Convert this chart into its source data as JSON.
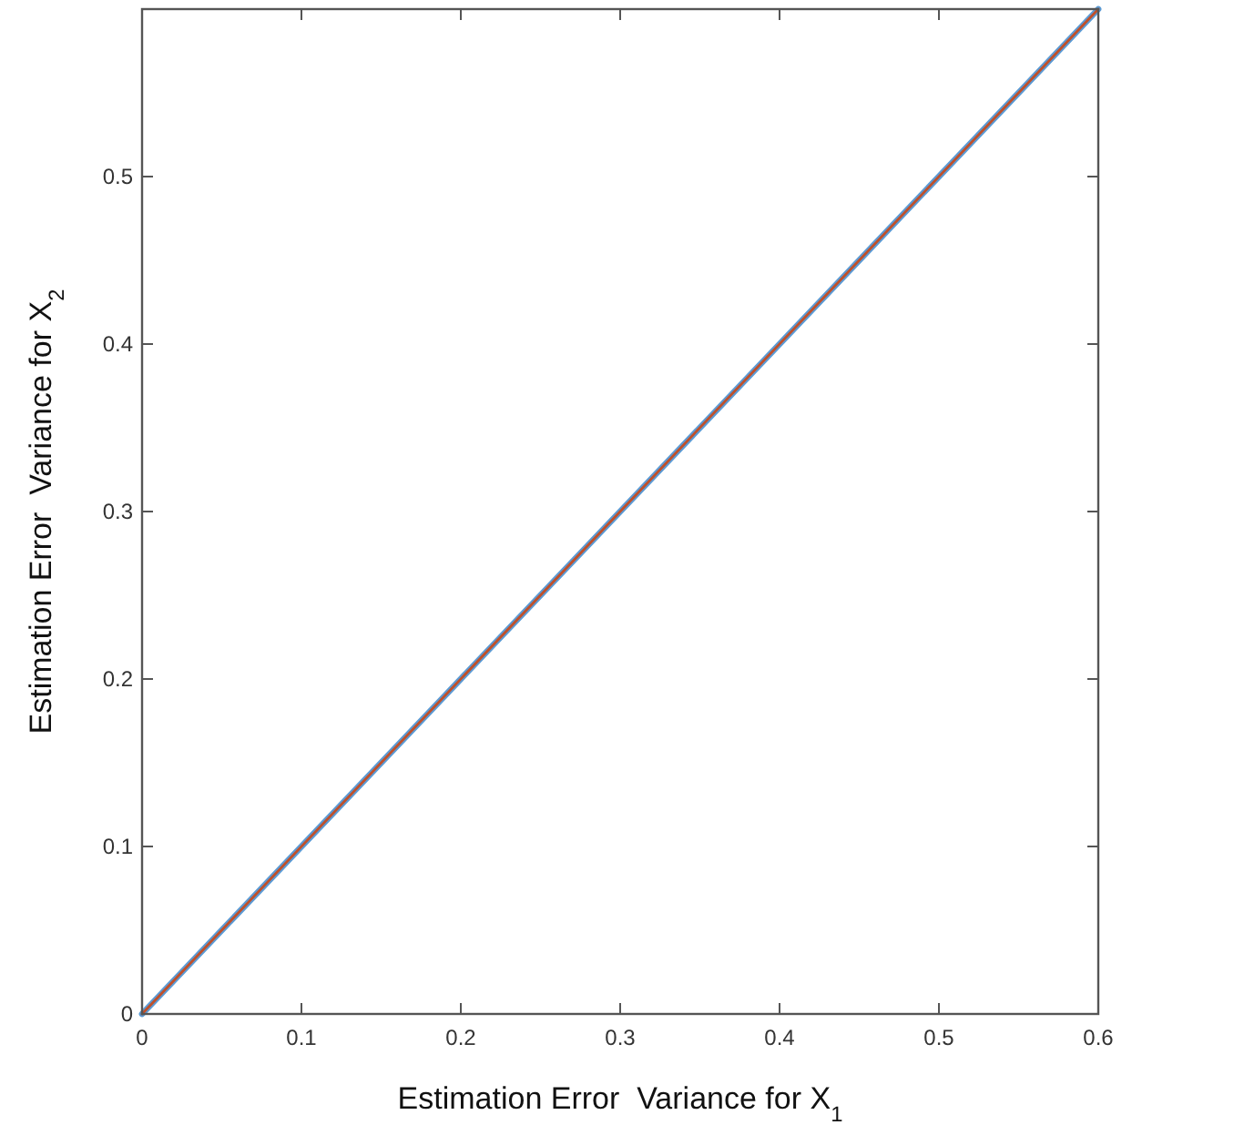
{
  "chart_data": {
    "type": "line",
    "xlabel": "Estimation Error  Variance for X$_{1}$",
    "ylabel": "Estimation Error  Variance for X$_{2}$",
    "x": [
      0,
      0.6
    ],
    "series": [
      {
        "color": "#5b9bd5",
        "values": [
          0,
          0.6
        ]
      },
      {
        "color": "#c0502a",
        "values": [
          0,
          0.6
        ]
      }
    ],
    "xlim": [
      0,
      0.6
    ],
    "ylim": [
      0,
      0.6
    ],
    "xticks": [
      0,
      0.1,
      0.2,
      0.3,
      0.4,
      0.5,
      0.6
    ],
    "yticks": [
      0,
      0.1,
      0.2,
      0.3,
      0.4,
      0.5,
      {
        "value": 0.6,
        "label": null
      }
    ],
    "grid": false,
    "marker": "none",
    "line_style": "solid"
  }
}
